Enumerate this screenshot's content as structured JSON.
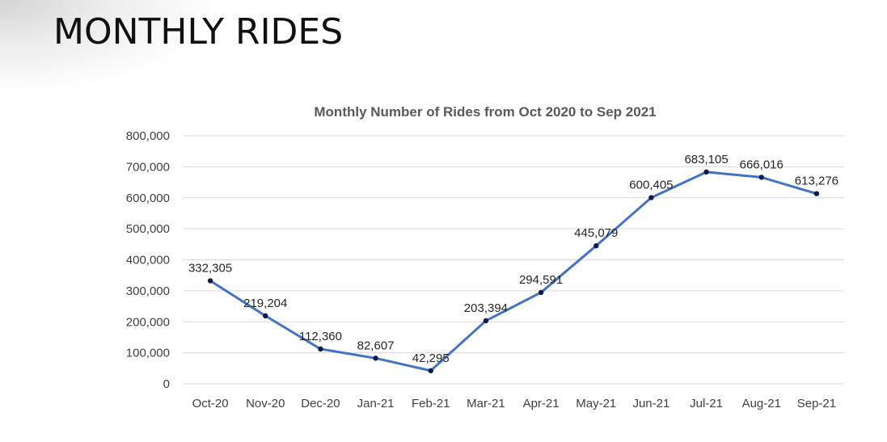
{
  "slide": {
    "title": "MONTHLY RIDES"
  },
  "colors": {
    "line": "#4472C4",
    "marker": "#0D1B4C",
    "grid": "#D9D9D9",
    "text": "#404040"
  },
  "chart_data": {
    "type": "line",
    "title": "Monthly Number of Rides from Oct 2020 to Sep 2021",
    "xlabel": "",
    "ylabel": "",
    "categories": [
      "Oct-20",
      "Nov-20",
      "Dec-20",
      "Jan-21",
      "Feb-21",
      "Mar-21",
      "Apr-21",
      "May-21",
      "Jun-21",
      "Jul-21",
      "Aug-21",
      "Sep-21"
    ],
    "series": [
      {
        "values": [
          332305,
          219204,
          112360,
          82607,
          42295,
          203394,
          294591,
          445079,
          600405,
          683105,
          666016,
          613276
        ]
      }
    ],
    "data_labels": [
      "332,305",
      "219,204",
      "112,360",
      "82,607",
      "42,295",
      "203,394",
      "294,591",
      "445,079",
      "600,405",
      "683,105",
      "666,016",
      "613,276"
    ],
    "ylim": [
      0,
      800000
    ],
    "yticks": [
      0,
      100000,
      200000,
      300000,
      400000,
      500000,
      600000,
      700000,
      800000
    ],
    "ytick_labels": [
      "0",
      "100,000",
      "200,000",
      "300,000",
      "400,000",
      "500,000",
      "600,000",
      "700,000",
      "800,000"
    ],
    "grid": true,
    "legend": "none"
  }
}
